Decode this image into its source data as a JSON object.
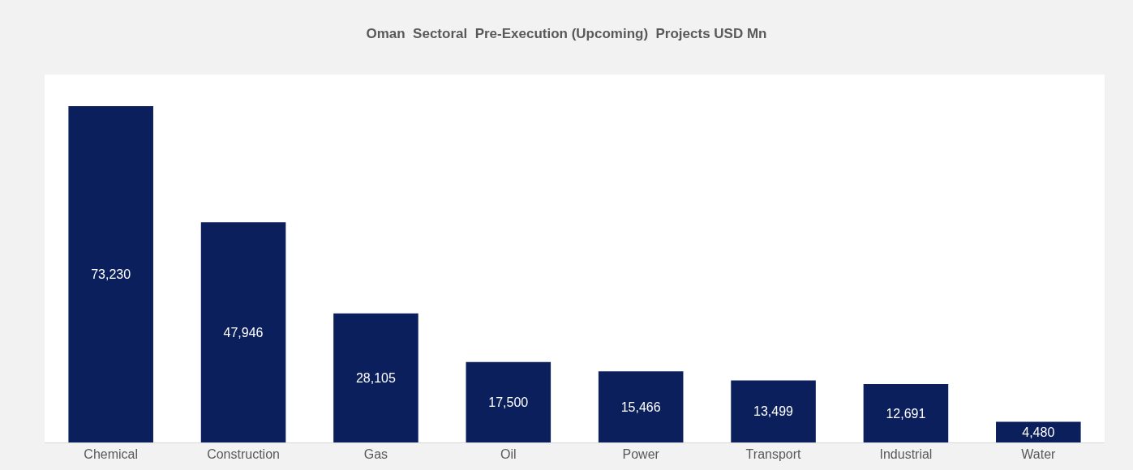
{
  "chart_data": {
    "type": "bar",
    "title": "Oman  Sectoral  Pre-Execution (Upcoming)  Projects USD Mn",
    "categories": [
      "Chemical",
      "Construction",
      "Gas",
      "Oil",
      "Power",
      "Transport",
      "Industrial",
      "Water"
    ],
    "values": [
      73230,
      47946,
      28105,
      17500,
      15466,
      13499,
      12691,
      4480
    ],
    "value_labels": [
      "73,230",
      "47,946",
      "28,105",
      "17,500",
      "15,466",
      "13,499",
      "12,691",
      "4,480"
    ],
    "color": "#0b1f5c"
  }
}
